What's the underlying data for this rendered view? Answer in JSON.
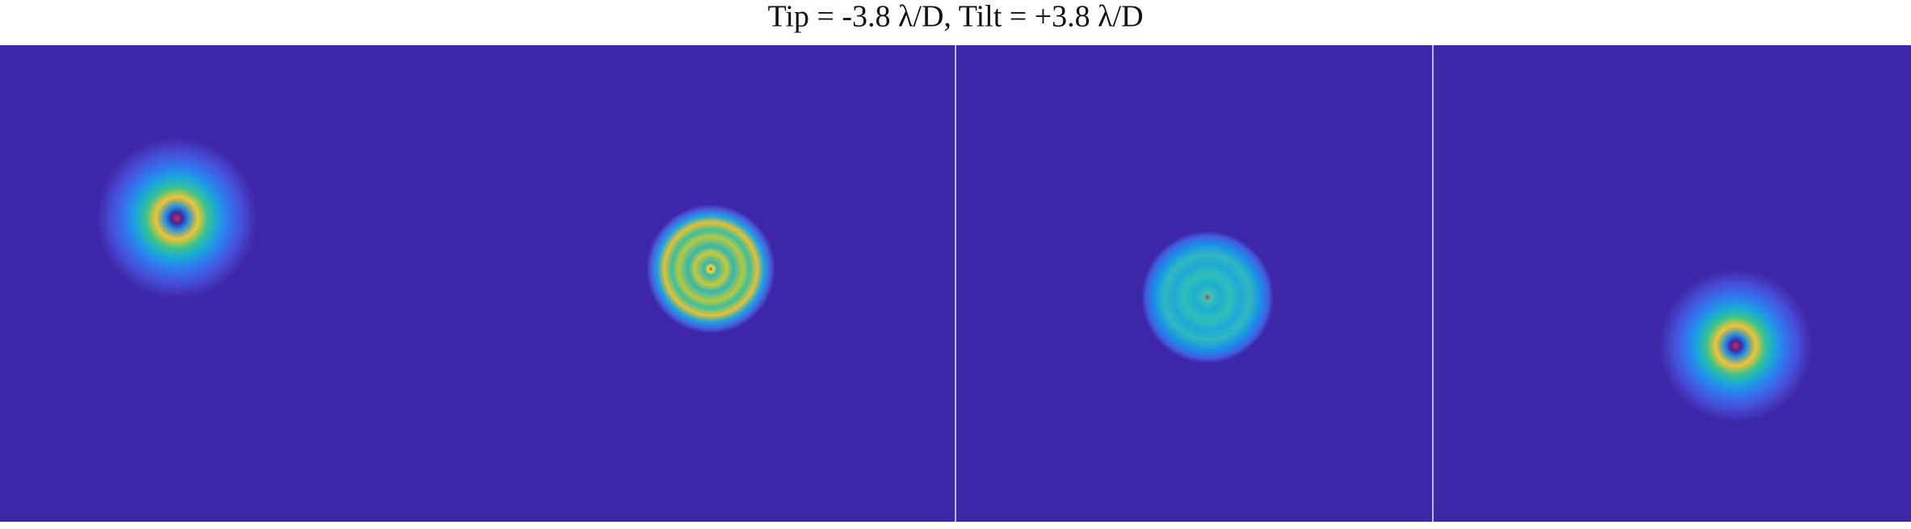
{
  "title": "Tip = -3.8 λ/D, Tilt = +3.8 λ/D"
}
